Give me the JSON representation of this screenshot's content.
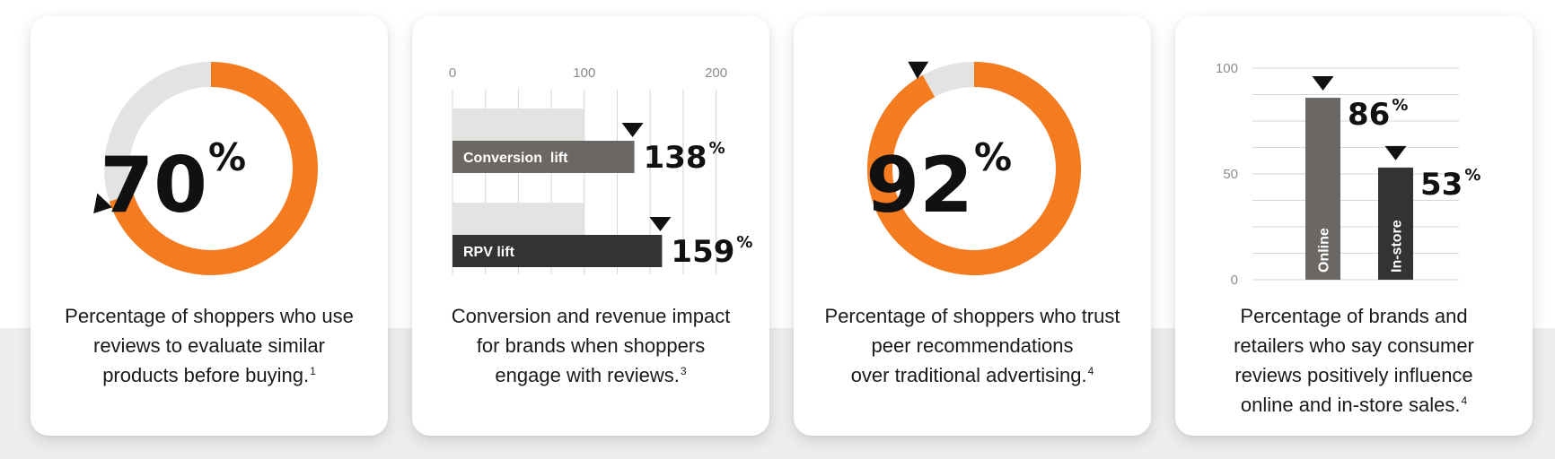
{
  "colors": {
    "orange": "#f47b20",
    "track": "#e3e4e2",
    "gray_bar": "#6b6764",
    "dark_bar": "#333333",
    "track_bar": "#e3e4e2",
    "grid": "#d6d6d6",
    "tick_text": "#8a8a8a",
    "text": "#111111"
  },
  "cards": [
    {
      "value_label": "70",
      "percent_sign": "%",
      "caption_lines": [
        "Percentage of shoppers who use",
        "reviews to evaluate similar",
        "products before buying."
      ],
      "footnote": "1"
    },
    {
      "bar_labels": [
        {
          "label": "Conversion  lift",
          "value": "138",
          "percent_sign": "%"
        },
        {
          "label": "RPV lift",
          "value": "159",
          "percent_sign": "%"
        }
      ],
      "ticks": [
        "0",
        "100",
        "200"
      ],
      "caption_lines": [
        "Conversion and revenue impact",
        "for brands when shoppers",
        "engage with reviews."
      ],
      "footnote": "3"
    },
    {
      "value_label": "92",
      "percent_sign": "%",
      "caption_lines": [
        "Percentage of shoppers who trust",
        "peer recommendations",
        "over traditional advertising."
      ],
      "footnote": "4"
    },
    {
      "bar_labels": [
        {
          "label": "Online",
          "value": "86",
          "percent_sign": "%"
        },
        {
          "label": "In-store",
          "value": "53",
          "percent_sign": "%"
        }
      ],
      "ticks": [
        "0",
        "50",
        "100"
      ],
      "caption_lines": [
        "Percentage of brands and",
        "retailers who say consumer",
        "reviews positively influence",
        "online and in-store sales."
      ],
      "footnote": "4"
    }
  ],
  "chart_data": [
    {
      "type": "pie",
      "variant": "donut",
      "values": [
        70,
        30
      ],
      "highlight_percent": 70
    },
    {
      "type": "bar",
      "orientation": "horizontal",
      "categories": [
        "Conversion  lift",
        "RPV lift"
      ],
      "values": [
        138,
        159
      ],
      "baseline": 100,
      "xlim": [
        0,
        220
      ],
      "xticks": [
        0,
        100,
        200
      ],
      "grid": true
    },
    {
      "type": "pie",
      "variant": "donut",
      "values": [
        92,
        8
      ],
      "highlight_percent": 92
    },
    {
      "type": "bar",
      "orientation": "vertical",
      "categories": [
        "Online",
        "In-store"
      ],
      "values": [
        86,
        53
      ],
      "ylim": [
        0,
        100
      ],
      "yticks": [
        0,
        50,
        100
      ],
      "grid": true
    }
  ]
}
